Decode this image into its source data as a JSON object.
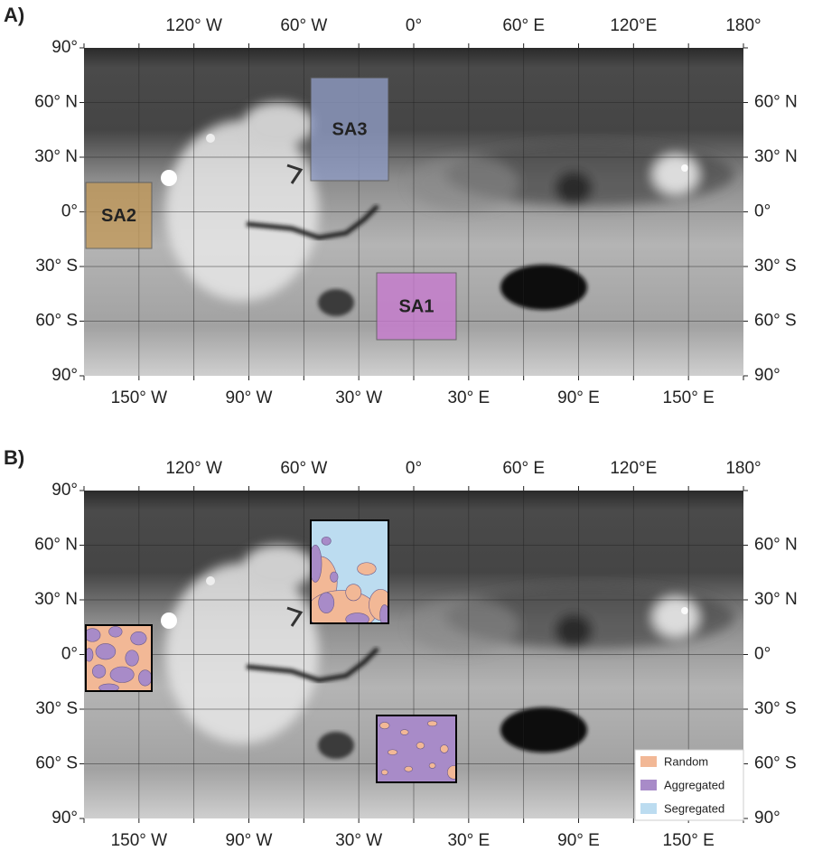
{
  "panels": [
    {
      "label": "A)",
      "top_labels": [
        "120° W",
        "60° W",
        "0°",
        "60° E",
        "120°E",
        "180°"
      ],
      "bottom_labels": [
        "150° W",
        "90° W",
        "30° W",
        "30° E",
        "90° E",
        "150° E"
      ],
      "left_labels": [
        "90°",
        "60° N",
        "30° N",
        "0°",
        "30° S",
        "60° S",
        "90°"
      ],
      "right_labels": [
        "60° N",
        "30° N",
        "0°",
        "30° S",
        "60° S",
        "90°"
      ],
      "regions": [
        {
          "label": "SA3",
          "color": "#8f9bc4"
        },
        {
          "label": "SA2",
          "color": "#c29a5c"
        },
        {
          "label": "SA1",
          "color": "#c77bcf"
        }
      ]
    },
    {
      "label": "B)",
      "top_labels": [
        "120° W",
        "60° W",
        "0°",
        "60° E",
        "120°E",
        "180°"
      ],
      "bottom_labels": [
        "150° W",
        "90° W",
        "30° W",
        "30° E",
        "90° E",
        "150° E"
      ],
      "left_labels": [
        "90°",
        "60° N",
        "30° N",
        "0°",
        "30° S",
        "60° S",
        "90°"
      ],
      "right_labels": [
        "60° N",
        "30° N",
        "0°",
        "30° S",
        "60° S",
        "90°"
      ]
    }
  ],
  "legend": [
    {
      "label": "Random",
      "color": "#f2b896"
    },
    {
      "label": "Aggregated",
      "color": "#a88bc8"
    },
    {
      "label": "Segregated",
      "color": "#bcdcf0"
    }
  ]
}
